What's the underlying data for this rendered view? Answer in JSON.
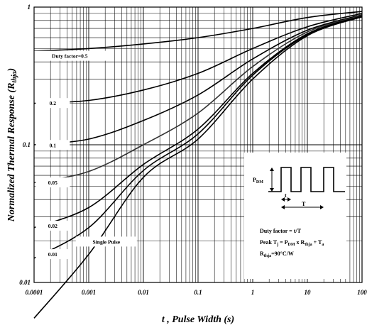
{
  "chart_data": {
    "type": "line",
    "xscale": "log",
    "yscale": "log",
    "xlim": [
      0.0001,
      100
    ],
    "ylim": [
      0.01,
      1
    ],
    "grid": true,
    "xlabel": "t , Pulse Width (s)",
    "ylabel": "Normalized Thermal Response (R",
    "ylabel_sub": "thja",
    "ylabel_close": ")",
    "xticks": [
      "0.0001",
      "0.001",
      "0.01",
      "0.1",
      "1",
      "10",
      "100"
    ],
    "yticks": [
      "1",
      "0.1",
      "0.01"
    ],
    "series": [
      {
        "name": "Duty factor=0.5",
        "x": [
          0.0001,
          0.001,
          0.01,
          0.1,
          1,
          10,
          100
        ],
        "y": [
          0.48,
          0.5,
          0.54,
          0.6,
          0.7,
          0.84,
          0.93
        ]
      },
      {
        "name": "0.2",
        "x": [
          0.0001,
          0.001,
          0.01,
          0.1,
          1,
          10,
          100
        ],
        "y": [
          0.2,
          0.21,
          0.25,
          0.33,
          0.5,
          0.72,
          0.9
        ]
      },
      {
        "name": "0.1",
        "x": [
          0.0001,
          0.001,
          0.01,
          0.1,
          1,
          10,
          100
        ],
        "y": [
          0.1,
          0.11,
          0.15,
          0.23,
          0.42,
          0.68,
          0.88
        ]
      },
      {
        "name": "0.05",
        "x": [
          0.0001,
          0.001,
          0.01,
          0.1,
          1,
          10,
          100
        ],
        "y": [
          0.053,
          0.064,
          0.1,
          0.17,
          0.37,
          0.66,
          0.87
        ]
      },
      {
        "name": "0.02",
        "x": [
          0.0001,
          0.001,
          0.01,
          0.1,
          1,
          10,
          100
        ],
        "y": [
          0.025,
          0.035,
          0.072,
          0.13,
          0.33,
          0.64,
          0.86
        ]
      },
      {
        "name": "0.01",
        "x": [
          0.0001,
          0.001,
          0.01,
          0.1,
          1,
          10,
          100
        ],
        "y": [
          0.015,
          0.025,
          0.065,
          0.12,
          0.32,
          0.63,
          0.86
        ]
      },
      {
        "name": "Single Pulse",
        "x": [
          0.0001,
          0.001,
          0.01,
          0.1,
          1,
          10,
          100
        ],
        "y": [
          0.0055,
          0.016,
          0.058,
          0.11,
          0.3,
          0.62,
          0.85
        ]
      }
    ]
  },
  "annotation": {
    "pdm": "P",
    "pdm_sub": "DM",
    "t_label": "t",
    "T_label": "T",
    "line1": "Duty factor = t/T",
    "line2_a": "Peak T",
    "line2_a_sub": "j",
    "line2_b": " = P",
    "line2_b_sub": "DM",
    "line2_c": " x R",
    "line2_c_sub": "thja",
    "line2_d": " + T",
    "line2_d_sub": "a",
    "line3_a": "R",
    "line3_a_sub": "thja",
    "line3_b": "=90°C/W"
  }
}
